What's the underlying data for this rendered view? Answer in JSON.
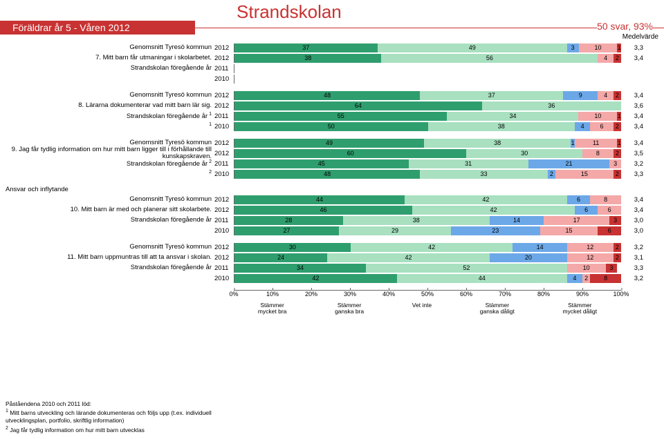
{
  "title": "Strandskolan",
  "subtitle": "Föräldrar år 5 - Våren 2012",
  "svar": "50 svar, 93%",
  "medel_label": "Medelvärde",
  "colors": {
    "mycket_bra": "#2f9e6e",
    "ganska_bra": "#a8e0c0",
    "vet_inte": "#6ca8e8",
    "ganska_daligt": "#f4a8a8",
    "mycket_daligt": "#c83232",
    "empty": "#ffffff"
  },
  "legend": [
    "Stämmer\nmycket bra",
    "Stämmer\nganska bra",
    "Vet inte",
    "Stämmer\nganska dåligt",
    "Stämmer\nmycket dåligt"
  ],
  "axis_ticks": [
    "0%",
    "10%",
    "20%",
    "30%",
    "40%",
    "50%",
    "60%",
    "70%",
    "80%",
    "90%",
    "100%"
  ],
  "section_label": "Ansvar och inflytande",
  "groups": [
    {
      "labels": [
        "Genomsnitt Tyresö kommun",
        "7. Mitt barn får utmaningar i skolarbetet.",
        "Strandskolan föregående år",
        ""
      ],
      "sup": [
        "",
        "",
        "",
        ""
      ],
      "rows": [
        {
          "year": "2012",
          "segs": [
            37,
            49,
            3,
            10,
            1
          ],
          "mean": "3,3"
        },
        {
          "year": "2012",
          "segs": [
            38,
            56,
            0,
            4,
            2
          ],
          "mean": "3,4"
        },
        {
          "year": "2011",
          "segs": null,
          "mean": ""
        },
        {
          "year": "2010",
          "segs": null,
          "mean": ""
        }
      ]
    },
    {
      "labels": [
        "Genomsnitt Tyresö kommun",
        "8. Lärarna dokumenterar vad mitt barn lär sig.",
        "Strandskolan föregående år",
        ""
      ],
      "sup": [
        "",
        "",
        "1",
        "1"
      ],
      "rows": [
        {
          "year": "2012",
          "segs": [
            48,
            37,
            9,
            4,
            2
          ],
          "mean": "3,4"
        },
        {
          "year": "2012",
          "segs": [
            64,
            36,
            0,
            0,
            0
          ],
          "mean": "3,6"
        },
        {
          "year": "2011",
          "segs": [
            55,
            34,
            0,
            10,
            1
          ],
          "mean": "3,4"
        },
        {
          "year": "2010",
          "segs": [
            50,
            38,
            4,
            6,
            2
          ],
          "mean": "3,4"
        }
      ]
    },
    {
      "labels": [
        "Genomsnitt Tyresö kommun",
        "9. Jag får tydlig information om hur mitt barn ligger till i förhållande till kunskapskraven.",
        "Strandskolan föregående år",
        ""
      ],
      "sup": [
        "",
        "",
        "2",
        "2"
      ],
      "rows": [
        {
          "year": "2012",
          "segs": [
            49,
            38,
            1,
            11,
            1
          ],
          "mean": "3,4"
        },
        {
          "year": "2012",
          "segs": [
            60,
            30,
            0,
            8,
            2
          ],
          "mean": "3,5"
        },
        {
          "year": "2011",
          "segs": [
            45,
            31,
            21,
            3,
            0
          ],
          "mean": "3,2"
        },
        {
          "year": "2010",
          "segs": [
            48,
            33,
            2,
            15,
            2
          ],
          "mean": "3,3"
        }
      ]
    },
    {
      "labels": [
        "Genomsnitt Tyresö kommun",
        "10. Mitt barn är med och planerar sitt skolarbete.",
        "Strandskolan föregående år",
        ""
      ],
      "sup": [
        "",
        "",
        "",
        ""
      ],
      "rows": [
        {
          "year": "2012",
          "segs": [
            44,
            42,
            6,
            8,
            0
          ],
          "mean": "3,4"
        },
        {
          "year": "2012",
          "segs": [
            46,
            42,
            6,
            6,
            0
          ],
          "mean": "3,4"
        },
        {
          "year": "2011",
          "segs": [
            28,
            38,
            14,
            17,
            3
          ],
          "mean": "3,0"
        },
        {
          "year": "2010",
          "segs": [
            27,
            29,
            23,
            15,
            6
          ],
          "mean": "3,0"
        }
      ]
    },
    {
      "labels": [
        "Genomsnitt Tyresö kommun",
        "11. Mitt barn uppmuntras till att ta ansvar i skolan.",
        "Strandskolan föregående år",
        ""
      ],
      "sup": [
        "",
        "",
        "",
        ""
      ],
      "rows": [
        {
          "year": "2012",
          "segs": [
            30,
            42,
            14,
            12,
            2
          ],
          "mean": "3,2"
        },
        {
          "year": "2012",
          "segs": [
            24,
            42,
            20,
            12,
            2
          ],
          "mean": "3,1"
        },
        {
          "year": "2011",
          "segs": [
            34,
            52,
            0,
            10,
            3
          ],
          "mean": "3,3"
        },
        {
          "year": "2010",
          "segs": [
            42,
            44,
            4,
            2,
            8
          ],
          "mean": "3,2"
        }
      ]
    }
  ],
  "footnotes": {
    "heading": "Påståendena 2010 och 2011 löd:",
    "items": [
      {
        "num": "1",
        "text": "Mitt barns utveckling och lärande dokumenteras och följs upp (t.ex. individuell utvecklingsplan, portfolio, skriftlig information)"
      },
      {
        "num": "2",
        "text": "Jag får tydlig information om hur mitt barn utvecklas"
      }
    ]
  }
}
